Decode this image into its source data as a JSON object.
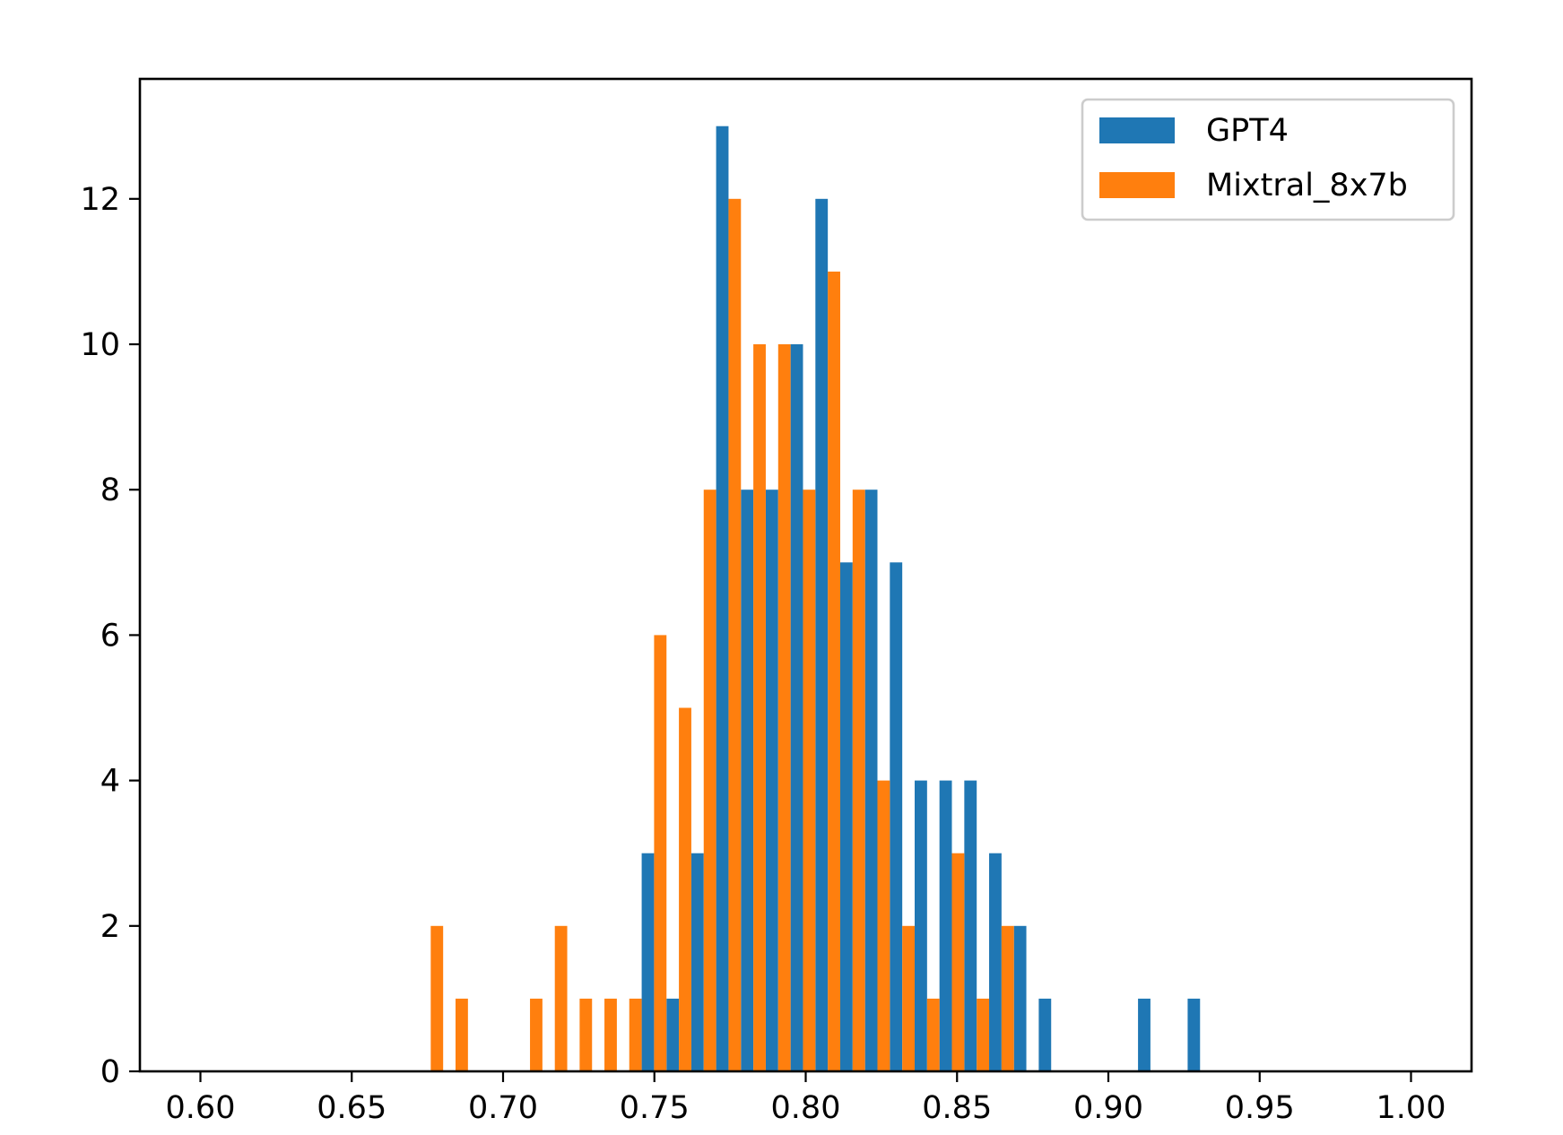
{
  "chart_data": {
    "type": "bar",
    "title": "",
    "xlabel": "",
    "ylabel": "",
    "xlim": [
      0.58,
      1.02
    ],
    "ylim": [
      0,
      13.65
    ],
    "grid": false,
    "legend_position": "top-right",
    "x_ticks": [
      {
        "value": 0.6,
        "label": "0.60"
      },
      {
        "value": 0.65,
        "label": "0.65"
      },
      {
        "value": 0.7,
        "label": "0.70"
      },
      {
        "value": 0.75,
        "label": "0.75"
      },
      {
        "value": 0.8,
        "label": "0.80"
      },
      {
        "value": 0.85,
        "label": "0.85"
      },
      {
        "value": 0.9,
        "label": "0.90"
      },
      {
        "value": 0.95,
        "label": "0.95"
      },
      {
        "value": 1.0,
        "label": "1.00"
      }
    ],
    "y_ticks": [
      {
        "value": 0,
        "label": "0"
      },
      {
        "value": 2,
        "label": "2"
      },
      {
        "value": 4,
        "label": "4"
      },
      {
        "value": 6,
        "label": "6"
      },
      {
        "value": 8,
        "label": "8"
      },
      {
        "value": 10,
        "label": "10"
      },
      {
        "value": 12,
        "label": "12"
      }
    ],
    "bin_edges": [
      0.672,
      0.6802,
      0.6884,
      0.6966,
      0.7048,
      0.713,
      0.7212,
      0.7294,
      0.7376,
      0.7458,
      0.754,
      0.7622,
      0.7704,
      0.7786,
      0.7868,
      0.795,
      0.8032,
      0.8114,
      0.8196,
      0.8278,
      0.836,
      0.8442,
      0.8524,
      0.8606,
      0.8688,
      0.877,
      0.8852,
      0.8934,
      0.9016,
      0.9098,
      0.918,
      0.9262,
      0.9344
    ],
    "series": [
      {
        "name": "GPT4",
        "color": "#1f77b4",
        "values": [
          0,
          0,
          0,
          0,
          0,
          0,
          0,
          0,
          0,
          3,
          1,
          3,
          13,
          8,
          8,
          10,
          12,
          7,
          8,
          7,
          4,
          4,
          4,
          3,
          2,
          1,
          0,
          0,
          0,
          1,
          0,
          1
        ]
      },
      {
        "name": "Mixtral_8x7b",
        "color": "#ff7f0e",
        "values": [
          2,
          1,
          0,
          0,
          1,
          2,
          1,
          1,
          1,
          6,
          5,
          8,
          12,
          10,
          10,
          8,
          11,
          8,
          4,
          2,
          1,
          3,
          1,
          2,
          0,
          0,
          0,
          0,
          0,
          0,
          0,
          0
        ]
      }
    ]
  }
}
